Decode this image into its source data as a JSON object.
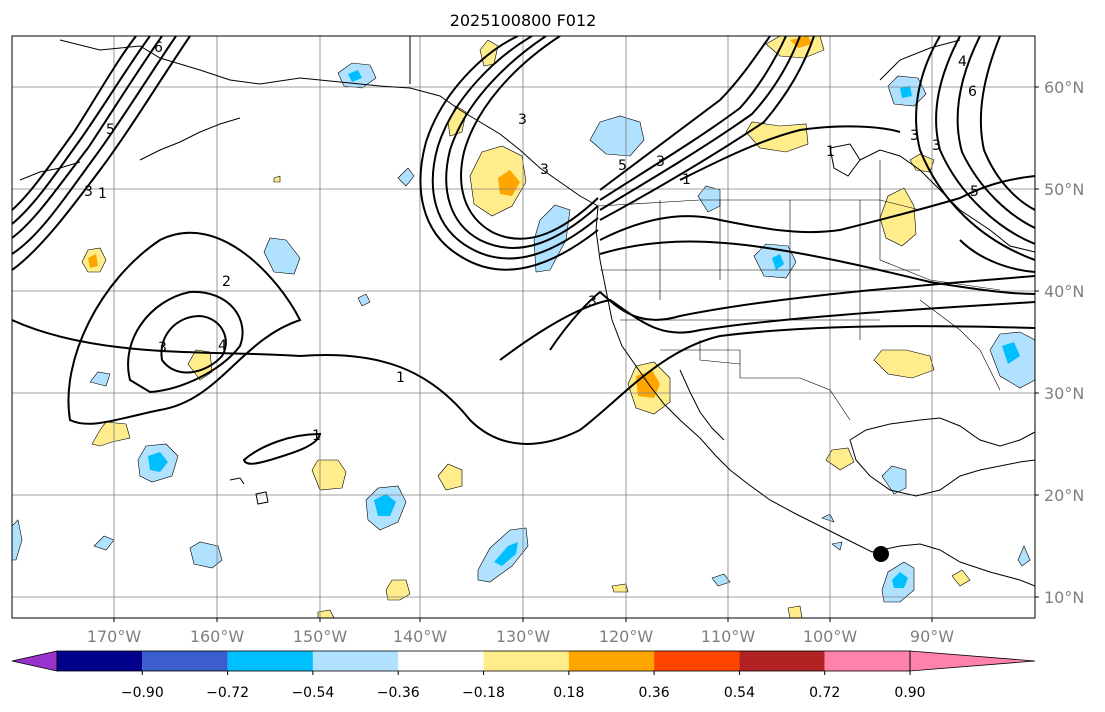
{
  "title": "2025100800 F012",
  "colors": {
    "frame": "#000000",
    "grid": "#808080",
    "coast": "#000000",
    "contour": "#000000",
    "marker": "#000000"
  },
  "icons": {
    "marker": "filled-circle"
  },
  "map": {
    "lon_range": [
      -180,
      -80
    ],
    "lat_range": [
      8,
      65
    ],
    "lon_labels": [
      "170°W",
      "160°W",
      "150°W",
      "140°W",
      "130°W",
      "120°W",
      "110°W",
      "100°W",
      "90°W"
    ],
    "lat_labels": [
      "60°N",
      "50°N",
      "40°N",
      "30°N",
      "20°N",
      "10°N"
    ],
    "contour_labels": [
      "6",
      "5",
      "3",
      "1",
      "2",
      "3",
      "4",
      "1",
      "1",
      "3",
      "3",
      "3",
      "5",
      "3",
      "1",
      "1",
      "4",
      "6",
      "3",
      "5",
      "3"
    ]
  },
  "colorbar": {
    "colors": [
      "#9932cc",
      "#00008b",
      "#3a5fcd",
      "#00bfff",
      "#b0e2ff",
      "#ffffff",
      "#ffec8b",
      "#ffa500",
      "#ff4500",
      "#b22222",
      "#ff82ab"
    ],
    "tick_labels": [
      "−0.90",
      "−0.72",
      "−0.54",
      "−0.36",
      "−0.18",
      "0.18",
      "0.36",
      "0.54",
      "0.72",
      "0.90"
    ],
    "extend": "both"
  }
}
